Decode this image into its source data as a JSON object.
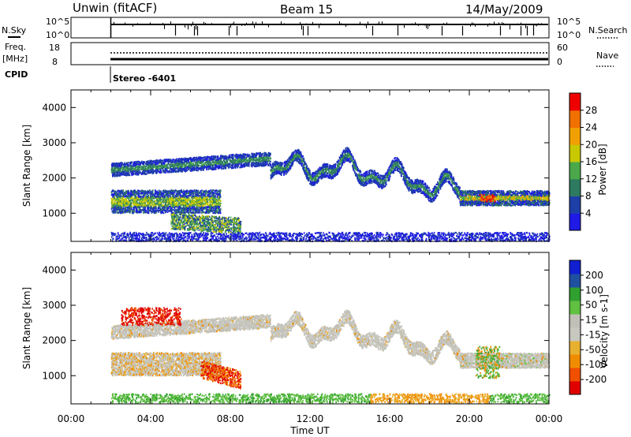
{
  "header": {
    "title_left": "Unwin (fitACF)",
    "title_center": "Beam 15",
    "title_right": "14/May/2009"
  },
  "strip_labels": {
    "nsky": "N.Sky",
    "freq": "Freq.",
    "freq_unit": "[MHz]",
    "cpid": "CPID",
    "nsearch": "N.Search",
    "nave": "Nave",
    "mode": "Stereo -6401"
  },
  "strip_ticks": {
    "noise_top": "10^5",
    "noise_bottom": "10^0",
    "freq_top": "18",
    "freq_bottom": "8",
    "nave_top": "60",
    "nave_bottom": "0"
  },
  "colors": {
    "power": [
      "#1f1ae6",
      "#1e3fa8",
      "#2e7a60",
      "#4aa84a",
      "#c8c800",
      "#f0a000",
      "#f07000",
      "#ee0000"
    ],
    "velocity": [
      "#e00000",
      "#f05000",
      "#f08c00",
      "#e8b030",
      "#c8c8c0",
      "#c0c0b8",
      "#60c040",
      "#30a030",
      "#2050a0",
      "#1020d0"
    ]
  },
  "chart_data": [
    {
      "type": "heatmap",
      "panel": "power",
      "ylabel": "Slant Range [km]",
      "y_ticks": [
        "1000",
        "2000",
        "3000",
        "4000"
      ],
      "ylim": [
        200,
        4500
      ],
      "xlim": [
        "00:00",
        "24:00"
      ],
      "colorbar_label": "Power [dB]",
      "colorbar_ticks": [
        "4",
        "8",
        "12",
        "16",
        "20",
        "24",
        "28"
      ],
      "colorbar_range": [
        0,
        32
      ],
      "data_start": "02:00"
    },
    {
      "type": "heatmap",
      "panel": "velocity",
      "ylabel": "Slant Range [km]",
      "y_ticks": [
        "1000",
        "2000",
        "3000",
        "4000"
      ],
      "ylim": [
        200,
        4500
      ],
      "xlabel": "Time UT",
      "x_ticks": [
        "00:00",
        "04:00",
        "08:00",
        "12:00",
        "16:00",
        "20:00",
        "00:00"
      ],
      "colorbar_label": "Velocity [m s-1]",
      "colorbar_ticks": [
        "-200",
        "-100",
        "-50",
        "-15",
        "15",
        "50",
        "100",
        "200"
      ],
      "data_start": "02:00"
    }
  ]
}
